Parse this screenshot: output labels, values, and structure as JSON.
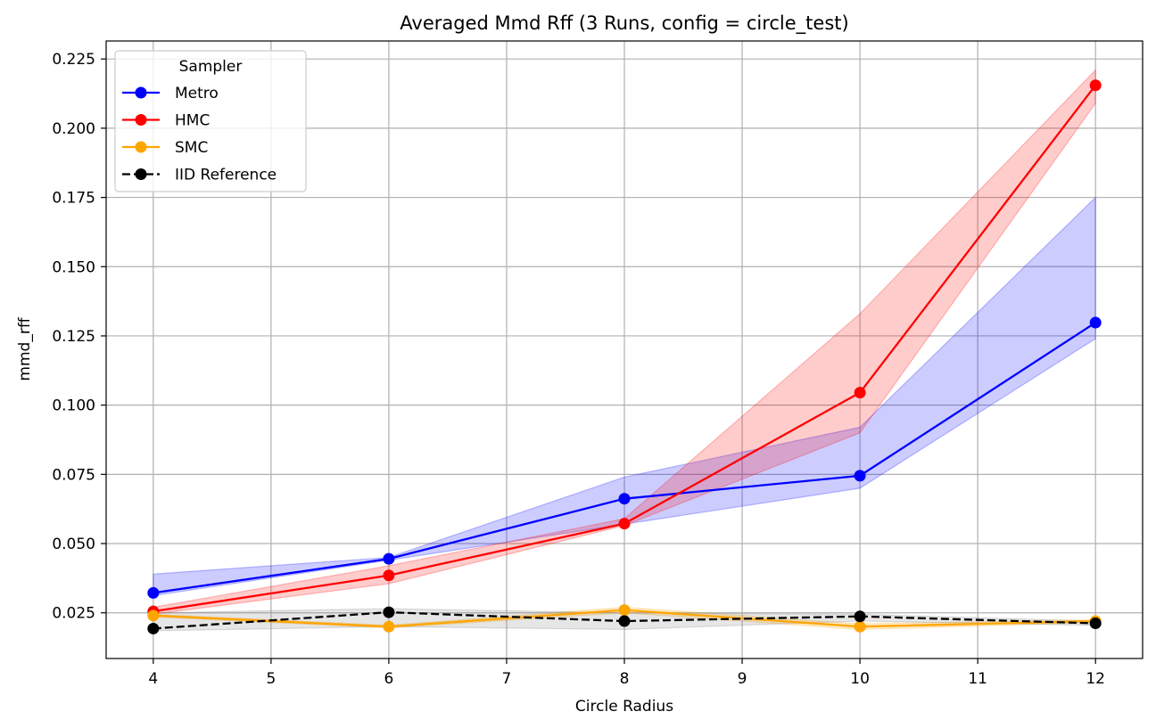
{
  "chart_data": {
    "type": "line",
    "title": "Averaged Mmd Rff (3 Runs, config = circle_test)",
    "xlabel": "Circle Radius",
    "ylabel": "mmd_rff",
    "x": [
      4,
      6,
      8,
      10,
      12
    ],
    "xticks": [
      "4",
      "5",
      "6",
      "7",
      "8",
      "9",
      "10",
      "11",
      "12"
    ],
    "xlim": [
      3.6,
      12.4
    ],
    "yticks": [
      "0.025",
      "0.050",
      "0.075",
      "0.100",
      "0.125",
      "0.150",
      "0.175",
      "0.200",
      "0.225"
    ],
    "ylim": [
      0.0085,
      0.2315
    ],
    "grid": true,
    "legend": {
      "title": "Sampler",
      "placement": "upper-left"
    },
    "series": [
      {
        "name": "Metro",
        "color": "#0000ff",
        "linestyle": "solid",
        "values": [
          0.0322,
          0.0445,
          0.0662,
          0.0745,
          0.1298
        ],
        "band_lower": [
          0.0312,
          0.044,
          0.057,
          0.07,
          0.124
        ],
        "band_upper": [
          0.039,
          0.045,
          0.074,
          0.092,
          0.175
        ]
      },
      {
        "name": "HMC",
        "color": "#ff0000",
        "linestyle": "solid",
        "values": [
          0.0255,
          0.0385,
          0.0572,
          0.1045,
          0.2155
        ],
        "band_lower": [
          0.0245,
          0.0355,
          0.0565,
          0.09,
          0.209
        ],
        "band_upper": [
          0.027,
          0.042,
          0.059,
          0.133,
          0.221
        ]
      },
      {
        "name": "SMC",
        "color": "#ffa500",
        "linestyle": "solid",
        "values": [
          0.024,
          0.02,
          0.026,
          0.02,
          0.022
        ],
        "band_lower": [
          0.0235,
          0.0195,
          0.025,
          0.019,
          0.0215
        ],
        "band_upper": [
          0.0245,
          0.0205,
          0.027,
          0.021,
          0.0225
        ]
      },
      {
        "name": "IID Reference",
        "color": "#000000",
        "linestyle": "dashed",
        "values": [
          0.0193,
          0.0252,
          0.022,
          0.0237,
          0.0212
        ],
        "band_lower": [
          0.0185,
          0.02,
          0.019,
          0.022,
          0.0205
        ],
        "band_upper": [
          0.025,
          0.0265,
          0.025,
          0.0245,
          0.022
        ]
      }
    ]
  }
}
